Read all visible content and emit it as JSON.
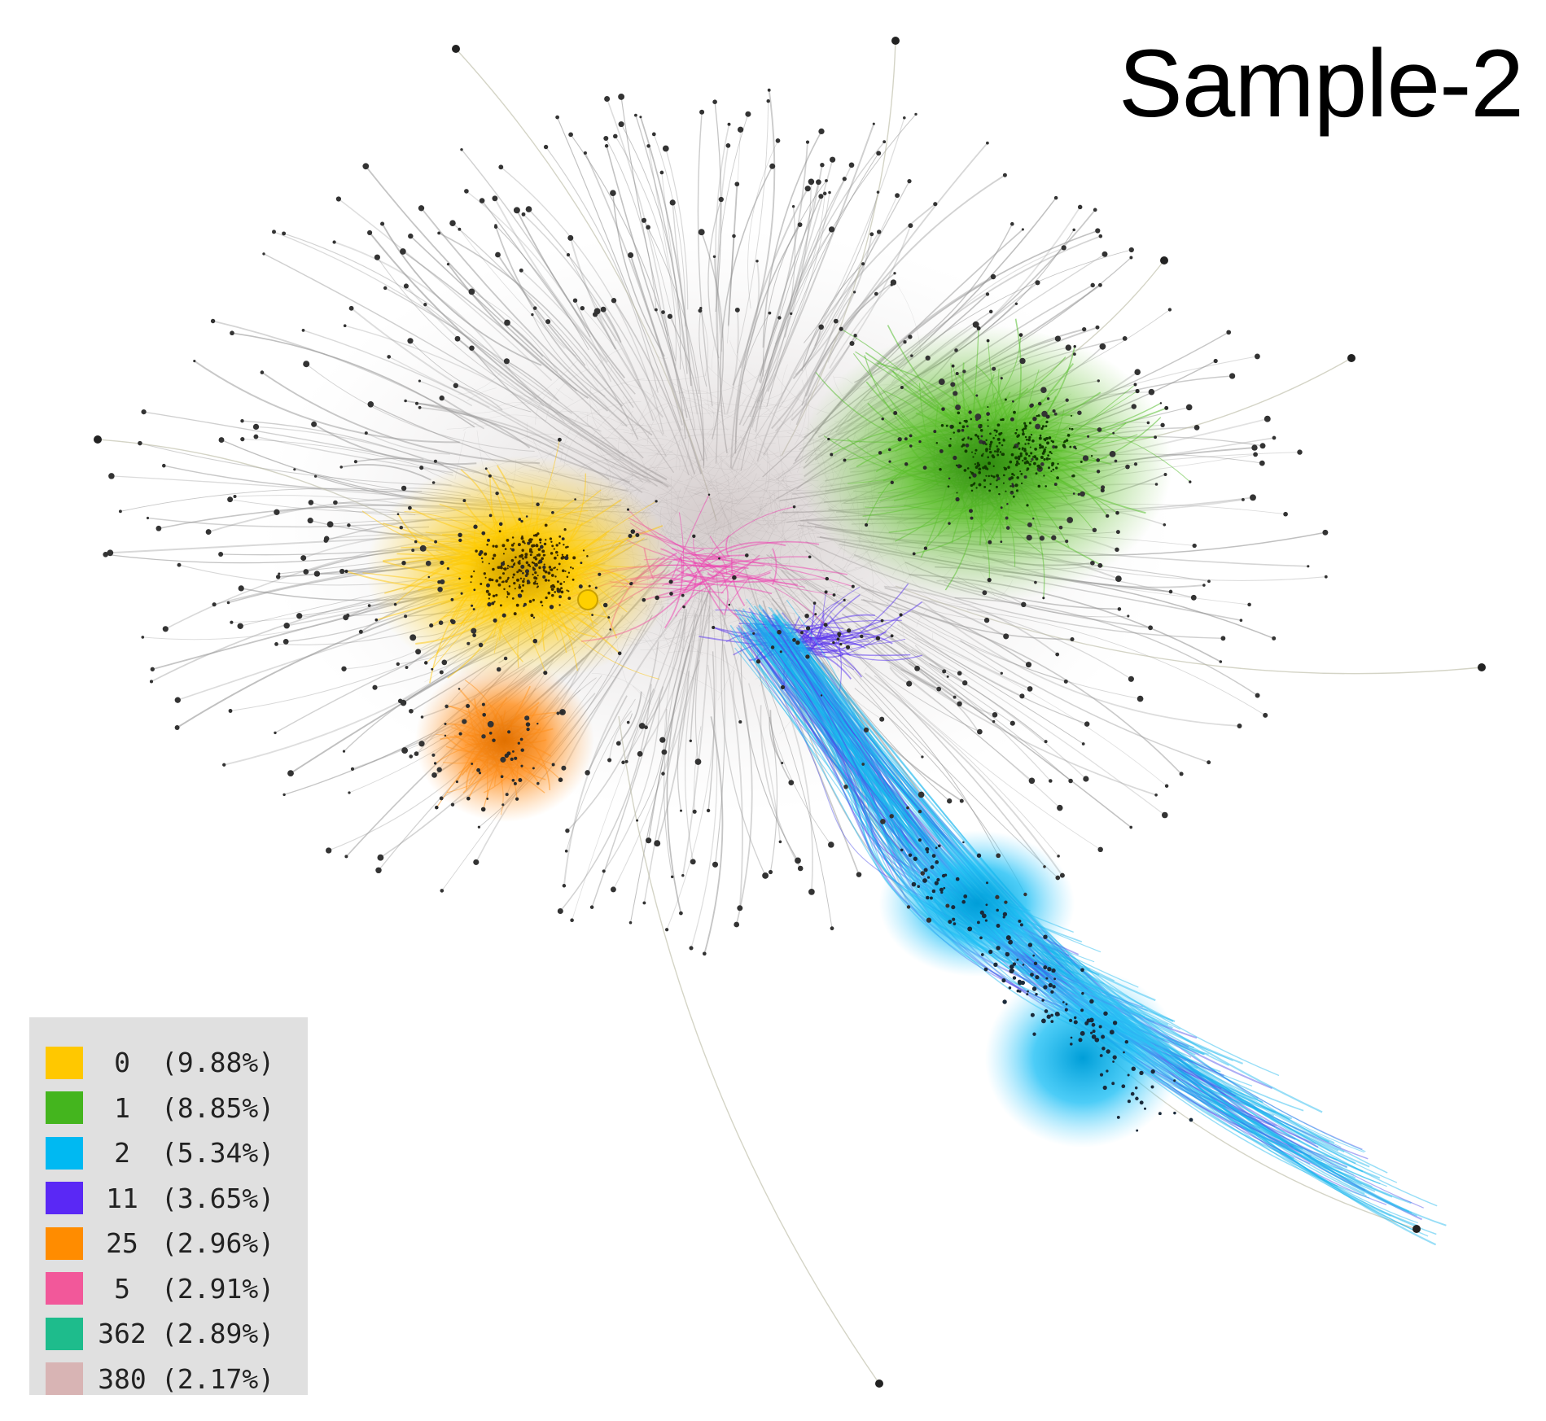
{
  "title": "Sample-2",
  "legend": [
    {
      "id": "0",
      "pct": "(9.88%)",
      "color": "#ffc800"
    },
    {
      "id": "1",
      "pct": "(8.85%)",
      "color": "#44b51e"
    },
    {
      "id": "2",
      "pct": "(5.34%)",
      "color": "#00b9f2"
    },
    {
      "id": "11",
      "pct": "(3.65%)",
      "color": "#5a28f5"
    },
    {
      "id": "25",
      "pct": "(2.96%)",
      "color": "#ff8c00"
    },
    {
      "id": "5",
      "pct": "(2.91%)",
      "color": "#f2589a"
    },
    {
      "id": "362",
      "pct": "(2.89%)",
      "color": "#1ebc8c"
    },
    {
      "id": "380",
      "pct": "(2.17%)",
      "color": "#d8b4b4"
    }
  ]
}
